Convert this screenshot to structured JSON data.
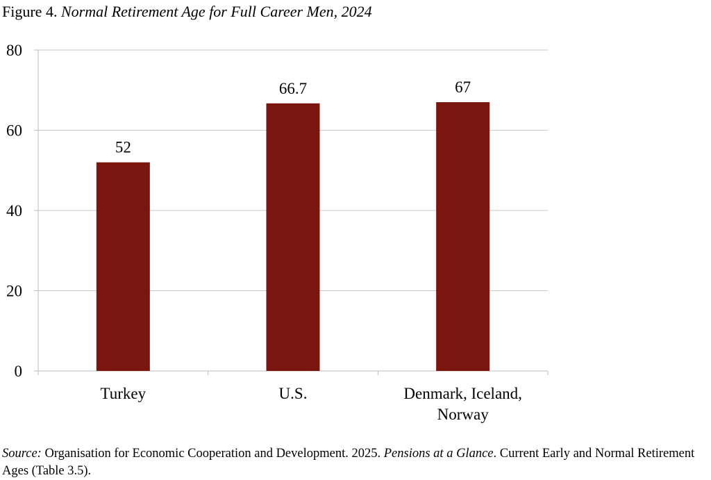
{
  "figure": {
    "label": "Figure 4.",
    "title_italic": "Normal Retirement Age for Full Career Men, 2024"
  },
  "chart_data": {
    "type": "bar",
    "categories": [
      "Turkey",
      "U.S.",
      "Denmark, Iceland, Norway"
    ],
    "category_lines": [
      [
        "Turkey"
      ],
      [
        "U.S."
      ],
      [
        "Denmark, Iceland,",
        "Norway"
      ]
    ],
    "values": [
      52,
      66.7,
      67
    ],
    "data_labels": [
      "52",
      "66.7",
      "67"
    ],
    "ylim": [
      0,
      80
    ],
    "yticks": [
      0,
      20,
      40,
      60,
      80
    ],
    "grid": true,
    "bar_color": "#7b1510",
    "title": "Normal Retirement Age for Full Career Men, 2024",
    "xlabel": "",
    "ylabel": ""
  },
  "source": {
    "label": "Source:",
    "text1": " Organisation for Economic Cooperation and Development. 2025. ",
    "publication": "Pensions at a Glance",
    "text2": ". Current Early and Normal Retirement Ages (Table 3.5)."
  }
}
